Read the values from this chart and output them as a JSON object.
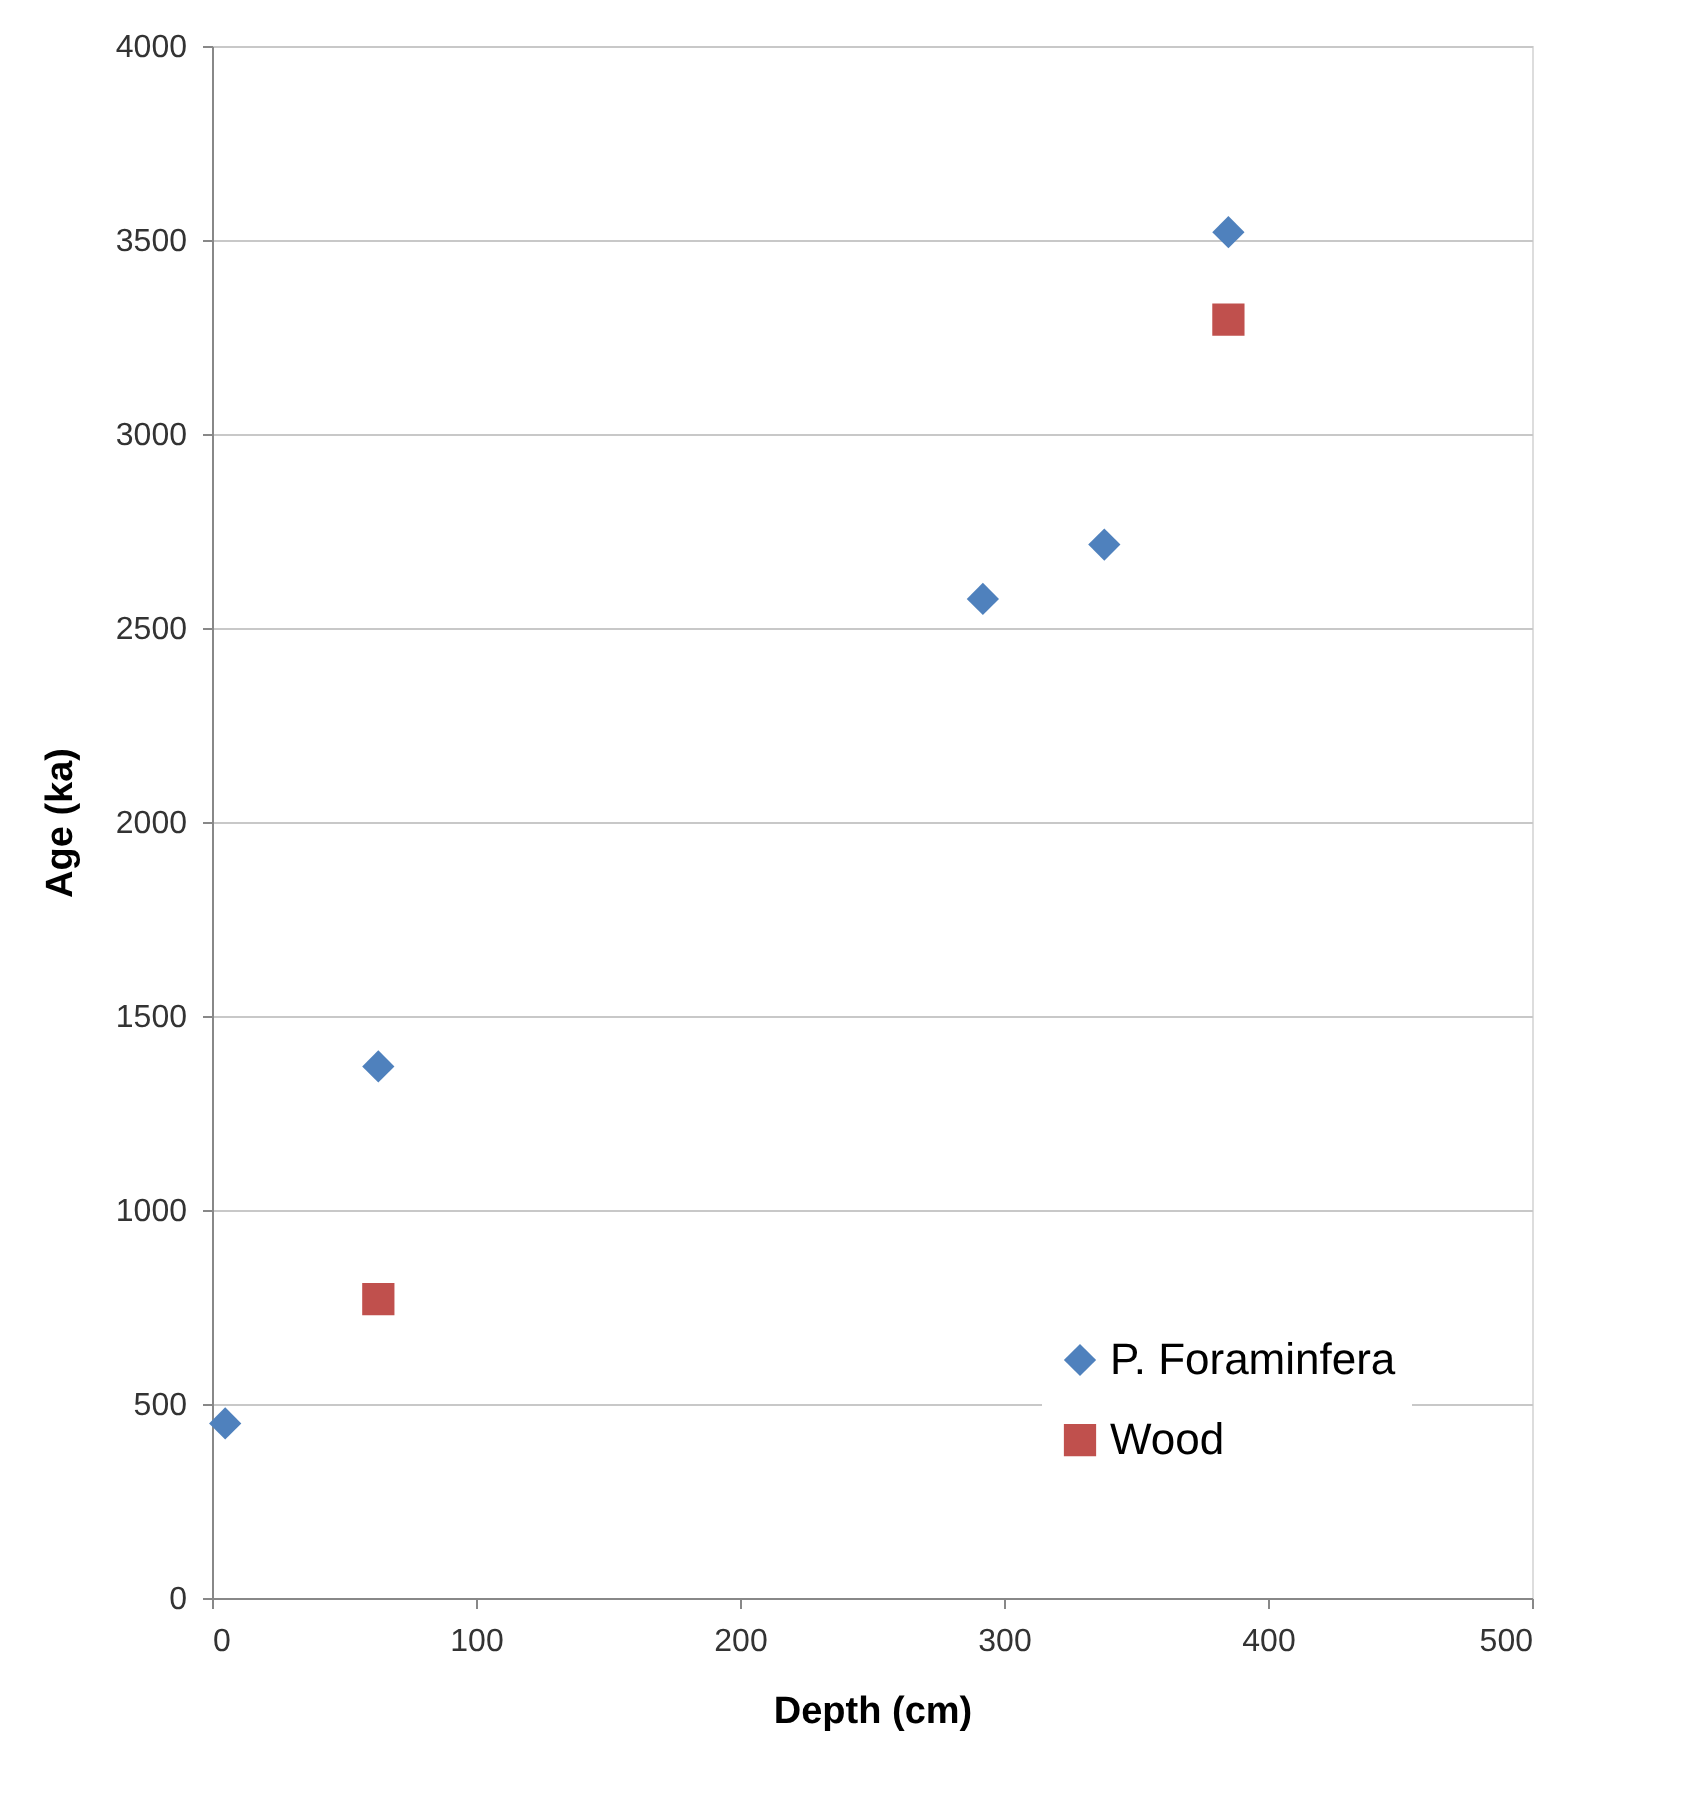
{
  "chart_data": {
    "type": "scatter",
    "xlabel": "Depth (cm)",
    "ylabel": "Age (ka)",
    "xlim": [
      0,
      500
    ],
    "xticks": [
      0,
      100,
      200,
      300,
      400,
      500
    ],
    "ylim": [
      0,
      4000
    ],
    "yticks": [
      0,
      500,
      1000,
      1500,
      2000,
      2500,
      3000,
      3500,
      4000
    ],
    "grid": "y",
    "legend": "bottom right",
    "series": [
      {
        "name": "P. Foraminfera",
        "color": "#4f81bd",
        "marker": "diamond",
        "x": [
          5,
          63,
          292,
          338,
          385
        ],
        "values": [
          450,
          1370,
          2575,
          2715,
          3520
        ]
      },
      {
        "name": "Wood",
        "color": "#c0504d",
        "marker": "square",
        "x": [
          63,
          385
        ],
        "values": [
          770,
          3295
        ]
      }
    ]
  }
}
